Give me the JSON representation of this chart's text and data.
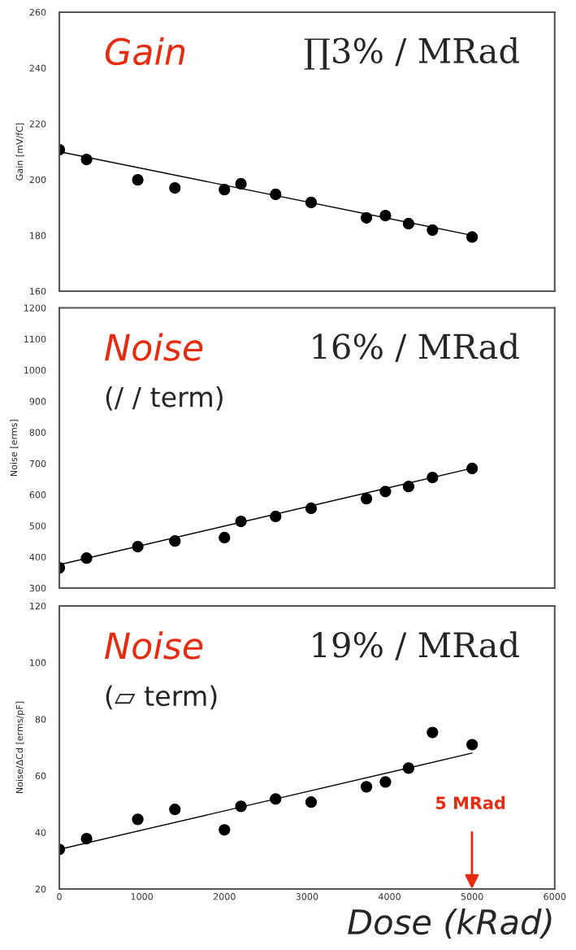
{
  "chart_data": [
    {
      "type": "scatter",
      "ylabel": "Gain [mV/fC]",
      "xlim": [
        0,
        6000
      ],
      "xticks": [
        0,
        1000,
        2000,
        3000,
        4000,
        5000,
        6000
      ],
      "ylim": [
        160,
        260
      ],
      "yticks": [
        160,
        180,
        200,
        220,
        240,
        260
      ],
      "tick_labels": "y",
      "grid": false,
      "annotations": [
        "Gain",
        "∏3% / MRad"
      ],
      "series": [
        {
          "color": "#000000",
          "marker": "circle",
          "x": [
            0,
            330,
            950,
            1400,
            2000,
            2200,
            2620,
            3050,
            3720,
            3950,
            4230,
            4520,
            5000
          ],
          "values": [
            210.7,
            207.2,
            199.9,
            197,
            196.4,
            198.5,
            194.7,
            191.8,
            186.3,
            187.1,
            184.2,
            181.9,
            179.4
          ]
        },
        {
          "type": "line",
          "color": "#000000",
          "x": [
            0,
            5000
          ],
          "values": [
            210,
            180
          ]
        }
      ]
    },
    {
      "type": "scatter",
      "ylabel": "Noise [erms]",
      "xlim": [
        0,
        6000
      ],
      "xticks": [
        0,
        1000,
        2000,
        3000,
        4000,
        5000,
        6000
      ],
      "ylim": [
        300,
        1200
      ],
      "yticks": [
        300,
        400,
        500,
        600,
        700,
        800,
        900,
        1000,
        1100,
        1200
      ],
      "tick_labels": "y",
      "grid": false,
      "annotations": [
        "Noise",
        "16% / MRad",
        "(/ / term)"
      ],
      "series": [
        {
          "color": "#000000",
          "marker": "circle",
          "x": [
            0,
            330,
            950,
            1400,
            2000,
            2200,
            2620,
            3050,
            3720,
            3950,
            4230,
            4520,
            5000
          ],
          "values": [
            365,
            396,
            433,
            451,
            462,
            514,
            530,
            556,
            587,
            610,
            626,
            655,
            684
          ]
        },
        {
          "type": "line",
          "color": "#000000",
          "x": [
            0,
            5000
          ],
          "values": [
            375,
            685
          ]
        }
      ]
    },
    {
      "type": "scatter",
      "ylabel": "Noise/ΔCd [erms/pF]",
      "xlabel": "Dose (kRad)",
      "xlim": [
        0,
        6000
      ],
      "xticks": [
        0,
        1000,
        2000,
        3000,
        4000,
        5000,
        6000
      ],
      "ylim": [
        20,
        120
      ],
      "yticks": [
        20,
        40,
        60,
        80,
        100,
        120
      ],
      "grid": false,
      "annotations": [
        "Noise",
        "19% / MRad",
        "(▱ term)",
        "5 MRad"
      ],
      "series": [
        {
          "color": "#000000",
          "marker": "circle",
          "x": [
            0,
            330,
            950,
            1400,
            2000,
            2200,
            2620,
            3050,
            3720,
            3950,
            4230,
            4520,
            5000
          ],
          "values": [
            34.0,
            37.8,
            44.6,
            48.1,
            40.9,
            49.2,
            51.8,
            50.7,
            56.1,
            57.8,
            62.7,
            75.3,
            71.0
          ]
        },
        {
          "type": "line",
          "color": "#000000",
          "x": [
            0,
            5000
          ],
          "values": [
            34,
            68
          ]
        }
      ]
    }
  ]
}
